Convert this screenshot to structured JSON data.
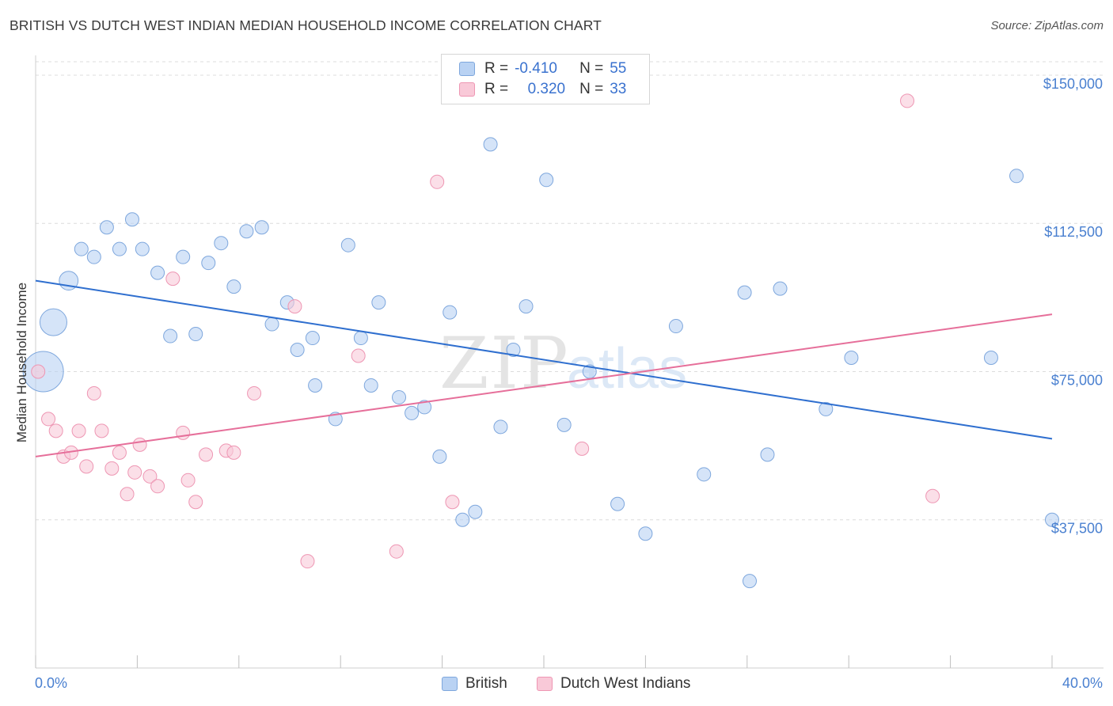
{
  "title": "BRITISH VS DUTCH WEST INDIAN MEDIAN HOUSEHOLD INCOME CORRELATION CHART",
  "source": "Source: ZipAtlas.com",
  "watermark": {
    "zip": "ZIP",
    "atlas": "atlas"
  },
  "legend": {
    "british": {
      "r_label": "R =",
      "r_value": "-0.410",
      "n_label": "N =",
      "n_value": "55"
    },
    "dutch": {
      "r_label": "R =",
      "r_value": "0.320",
      "n_label": "N =",
      "n_value": "33"
    }
  },
  "colors": {
    "british_fill": "#b9d2f3",
    "british_stroke": "#7ea7dd",
    "british_line": "#2f6fcf",
    "dutch_fill": "#f9c9d8",
    "dutch_stroke": "#ee96b3",
    "dutch_line": "#e66f9a",
    "tick_text": "#4a80d0"
  },
  "chart_data": {
    "type": "scatter",
    "title": "BRITISH VS DUTCH WEST INDIAN MEDIAN HOUSEHOLD INCOME CORRELATION CHART",
    "xlabel": "",
    "ylabel": "Median Household Income",
    "xlim": [
      0,
      40
    ],
    "ylim": [
      0,
      155000
    ],
    "x_tick_labels": [
      "0.0%",
      "40.0%"
    ],
    "y_ticks": [
      37500,
      75000,
      112500,
      150000
    ],
    "y_tick_labels": [
      "$37,500",
      "$75,000",
      "$112,500",
      "$150,000"
    ],
    "legend_position": "top-center",
    "grid": true,
    "series": [
      {
        "name": "British",
        "r": -0.41,
        "n": 55,
        "trend": {
          "x": [
            0,
            40
          ],
          "y": [
            98000,
            58000
          ]
        },
        "points": [
          {
            "x": 0.3,
            "y": 75000,
            "size": 3
          },
          {
            "x": 0.7,
            "y": 87500,
            "size": 2
          },
          {
            "x": 1.3,
            "y": 98000,
            "size": 1.4
          },
          {
            "x": 1.8,
            "y": 106000
          },
          {
            "x": 2.3,
            "y": 104000
          },
          {
            "x": 2.8,
            "y": 111500
          },
          {
            "x": 3.3,
            "y": 106000
          },
          {
            "x": 3.8,
            "y": 113500
          },
          {
            "x": 4.2,
            "y": 106000
          },
          {
            "x": 4.8,
            "y": 100000
          },
          {
            "x": 5.3,
            "y": 84000
          },
          {
            "x": 5.8,
            "y": 104000
          },
          {
            "x": 6.3,
            "y": 84500
          },
          {
            "x": 6.8,
            "y": 102500
          },
          {
            "x": 7.3,
            "y": 107500
          },
          {
            "x": 7.8,
            "y": 96500
          },
          {
            "x": 8.3,
            "y": 110500
          },
          {
            "x": 8.9,
            "y": 111500
          },
          {
            "x": 9.3,
            "y": 87000
          },
          {
            "x": 9.9,
            "y": 92500
          },
          {
            "x": 10.3,
            "y": 80500
          },
          {
            "x": 10.9,
            "y": 83500
          },
          {
            "x": 11.0,
            "y": 71500
          },
          {
            "x": 11.8,
            "y": 63000
          },
          {
            "x": 12.3,
            "y": 107000
          },
          {
            "x": 12.8,
            "y": 83500
          },
          {
            "x": 13.2,
            "y": 71500
          },
          {
            "x": 13.5,
            "y": 92500
          },
          {
            "x": 14.3,
            "y": 68500
          },
          {
            "x": 14.8,
            "y": 64500
          },
          {
            "x": 15.3,
            "y": 66000
          },
          {
            "x": 15.9,
            "y": 53500
          },
          {
            "x": 16.3,
            "y": 90000
          },
          {
            "x": 16.8,
            "y": 37500
          },
          {
            "x": 17.3,
            "y": 39500
          },
          {
            "x": 17.9,
            "y": 132500
          },
          {
            "x": 18.3,
            "y": 61000
          },
          {
            "x": 18.8,
            "y": 80500
          },
          {
            "x": 19.3,
            "y": 91500
          },
          {
            "x": 19.6,
            "y": 76000,
            "hidden": true
          },
          {
            "x": 20.1,
            "y": 123500
          },
          {
            "x": 20.8,
            "y": 61500
          },
          {
            "x": 21.8,
            "y": 75000
          },
          {
            "x": 22.9,
            "y": 41500
          },
          {
            "x": 24.0,
            "y": 34000
          },
          {
            "x": 25.2,
            "y": 86500
          },
          {
            "x": 26.3,
            "y": 49000
          },
          {
            "x": 27.9,
            "y": 95000
          },
          {
            "x": 28.1,
            "y": 22000
          },
          {
            "x": 28.8,
            "y": 54000
          },
          {
            "x": 29.3,
            "y": 96000
          },
          {
            "x": 31.1,
            "y": 65500
          },
          {
            "x": 32.1,
            "y": 78500
          },
          {
            "x": 37.6,
            "y": 78500
          },
          {
            "x": 38.6,
            "y": 124500
          },
          {
            "x": 40.0,
            "y": 37500
          }
        ]
      },
      {
        "name": "Dutch West Indians",
        "r": 0.32,
        "n": 33,
        "trend": {
          "x": [
            0,
            40
          ],
          "y": [
            53500,
            89500
          ]
        },
        "points": [
          {
            "x": 0.1,
            "y": 75000
          },
          {
            "x": 0.5,
            "y": 63000
          },
          {
            "x": 0.8,
            "y": 60000
          },
          {
            "x": 1.1,
            "y": 53500
          },
          {
            "x": 1.4,
            "y": 54500
          },
          {
            "x": 1.7,
            "y": 60000
          },
          {
            "x": 2.0,
            "y": 51000
          },
          {
            "x": 2.3,
            "y": 69500
          },
          {
            "x": 2.6,
            "y": 60000
          },
          {
            "x": 3.0,
            "y": 50500
          },
          {
            "x": 3.3,
            "y": 54500
          },
          {
            "x": 3.6,
            "y": 44000
          },
          {
            "x": 3.9,
            "y": 49500
          },
          {
            "x": 4.1,
            "y": 56500
          },
          {
            "x": 4.5,
            "y": 48500
          },
          {
            "x": 4.8,
            "y": 46000
          },
          {
            "x": 5.4,
            "y": 98500
          },
          {
            "x": 5.8,
            "y": 59500
          },
          {
            "x": 6.0,
            "y": 47500
          },
          {
            "x": 6.3,
            "y": 42000
          },
          {
            "x": 6.7,
            "y": 54000
          },
          {
            "x": 7.5,
            "y": 55000
          },
          {
            "x": 7.8,
            "y": 54500
          },
          {
            "x": 8.6,
            "y": 69500
          },
          {
            "x": 10.2,
            "y": 91500
          },
          {
            "x": 10.7,
            "y": 27000
          },
          {
            "x": 12.7,
            "y": 79000
          },
          {
            "x": 14.2,
            "y": 29500
          },
          {
            "x": 15.8,
            "y": 123000
          },
          {
            "x": 16.4,
            "y": 42000
          },
          {
            "x": 21.5,
            "y": 55500
          },
          {
            "x": 34.3,
            "y": 143500
          },
          {
            "x": 35.3,
            "y": 43500
          }
        ]
      }
    ]
  },
  "bottom_legend": {
    "british_label": "British",
    "dutch_label": "Dutch West Indians"
  }
}
